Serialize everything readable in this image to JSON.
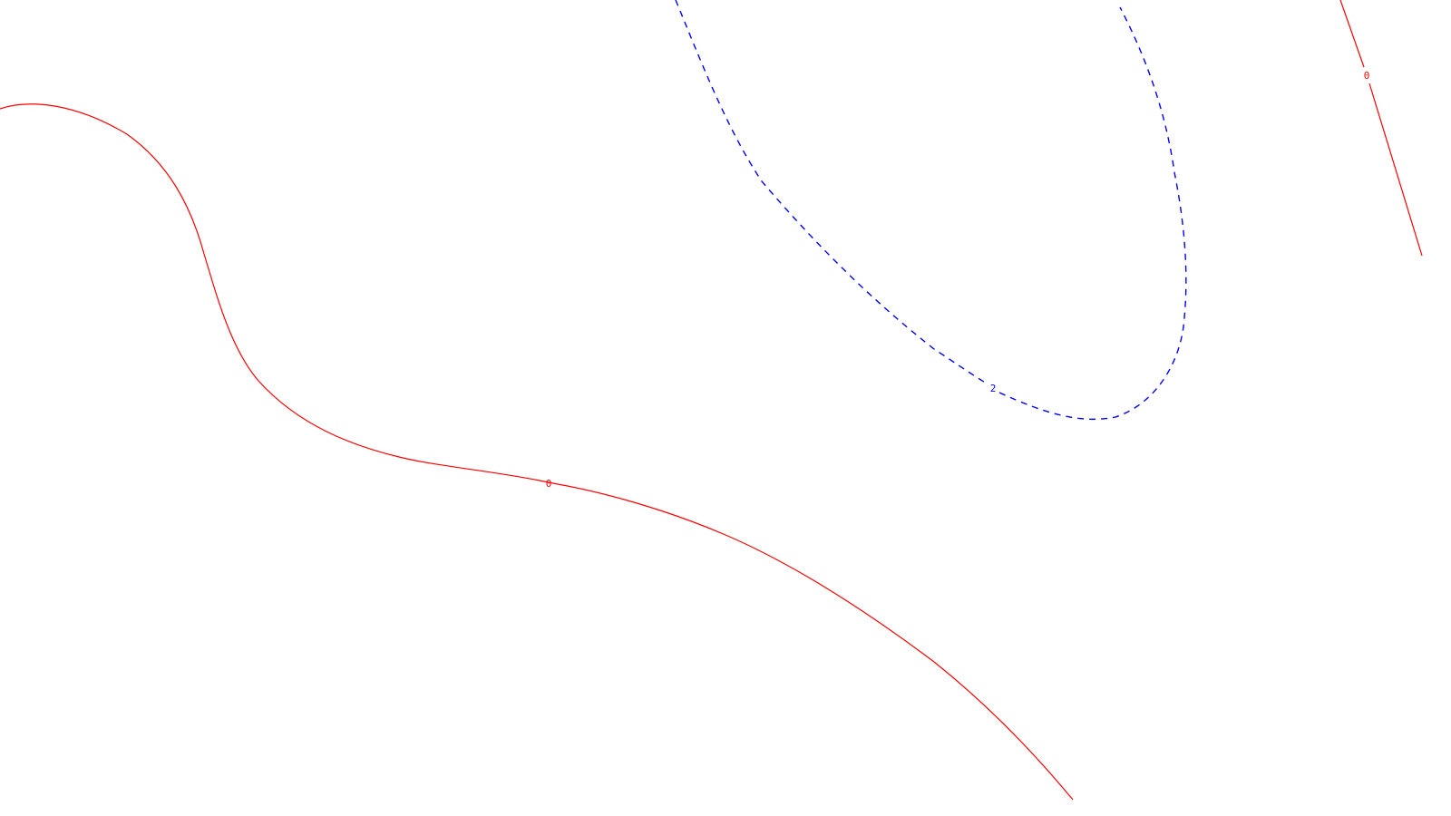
{
  "chart_data": {
    "type": "contour",
    "title": "",
    "xlabel": "",
    "ylabel": "",
    "grid": false,
    "legend": "none",
    "colors": {
      "zero_level": "#ff0000",
      "positive_level": "#0000ff",
      "background": "#ffffff"
    },
    "levels": [
      {
        "value": 0,
        "label": "0",
        "color": "#ff0000",
        "line_style": "solid"
      },
      {
        "value": 2,
        "label": "2",
        "color": "#0000ff",
        "line_style": "dashed"
      }
    ]
  }
}
